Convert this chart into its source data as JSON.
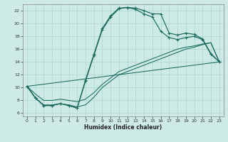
{
  "xlabel": "Humidex (Indice chaleur)",
  "bg_color": "#ceeae7",
  "line_color": "#1a6b5a",
  "grid_color": "#a8d8d0",
  "xlim": [
    -0.5,
    23.5
  ],
  "ylim": [
    5.5,
    23.0
  ],
  "xticks": [
    0,
    1,
    2,
    3,
    4,
    5,
    6,
    7,
    8,
    9,
    10,
    11,
    12,
    13,
    14,
    15,
    16,
    17,
    18,
    19,
    20,
    21,
    22,
    23
  ],
  "yticks": [
    6,
    8,
    10,
    12,
    14,
    16,
    18,
    20,
    22
  ],
  "line1_x": [
    0,
    1,
    2,
    3,
    4,
    5,
    6,
    7,
    8,
    9,
    10,
    11,
    12,
    13,
    14,
    15,
    16,
    17,
    18,
    19,
    20,
    21,
    22,
    23
  ],
  "line1_y": [
    10.2,
    8.4,
    7.2,
    7.2,
    7.5,
    7.2,
    6.8,
    11.2,
    15.2,
    19.2,
    21.2,
    22.4,
    22.5,
    22.4,
    22.0,
    21.5,
    21.5,
    18.5,
    18.2,
    18.5,
    18.3,
    17.6,
    15.3,
    14.0
  ],
  "line2_x": [
    0,
    1,
    2,
    3,
    4,
    5,
    6,
    7,
    8,
    9,
    10,
    11,
    12,
    13,
    14,
    15,
    16,
    17,
    18,
    19,
    20,
    21,
    22,
    23
  ],
  "line2_y": [
    10.2,
    8.4,
    7.2,
    7.2,
    7.5,
    7.2,
    6.8,
    11.0,
    15.0,
    19.0,
    21.0,
    22.3,
    22.5,
    22.2,
    21.5,
    21.0,
    18.8,
    17.8,
    17.5,
    17.8,
    18.0,
    17.5,
    15.2,
    14.0
  ],
  "line3_x": [
    0,
    1,
    2,
    3,
    4,
    5,
    6,
    7,
    8,
    9,
    10,
    11,
    12,
    13,
    14,
    15,
    16,
    17,
    18,
    19,
    20,
    21,
    22,
    23
  ],
  "line3_y": [
    10.2,
    8.4,
    7.3,
    7.3,
    7.5,
    7.3,
    7.0,
    7.3,
    8.5,
    10.0,
    11.0,
    12.0,
    12.5,
    13.0,
    13.5,
    14.0,
    14.5,
    15.0,
    15.5,
    16.0,
    16.3,
    16.7,
    17.0,
    14.0
  ],
  "line4_x": [
    0,
    23
  ],
  "line4_y": [
    10.2,
    14.0
  ],
  "line5_x": [
    0,
    1,
    2,
    3,
    4,
    5,
    6,
    7,
    8,
    9,
    10,
    11,
    12,
    13,
    14,
    15,
    16,
    17,
    18,
    19,
    20,
    21,
    22,
    23
  ],
  "line5_y": [
    10.2,
    9.0,
    8.0,
    8.0,
    8.2,
    8.0,
    7.8,
    8.2,
    9.2,
    10.5,
    11.5,
    12.5,
    13.0,
    13.5,
    14.0,
    14.5,
    15.0,
    15.5,
    16.0,
    16.3,
    16.5,
    16.8,
    17.0,
    14.0
  ]
}
